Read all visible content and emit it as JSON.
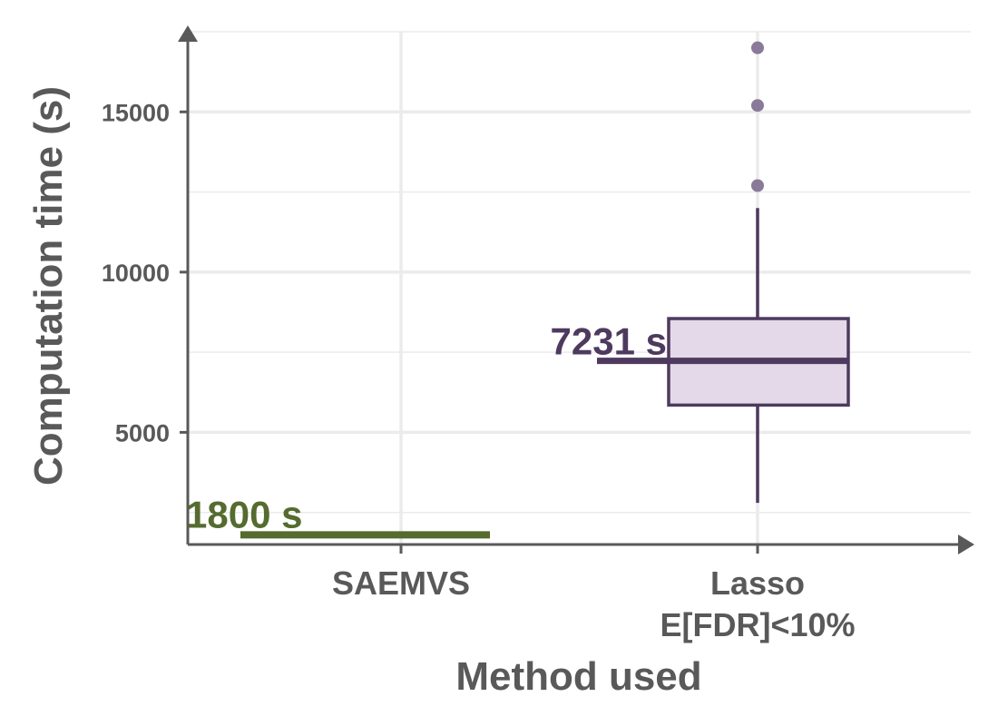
{
  "chart_data": {
    "type": "boxplot",
    "xlabel": "Method used",
    "ylabel": "Computation time (s)",
    "ylim": [
      1500,
      17500
    ],
    "yticks": [
      5000,
      10000,
      15000
    ],
    "grid": true,
    "categories": [
      {
        "lines": [
          "SAEMVS"
        ]
      },
      {
        "lines": [
          "Lasso",
          "E[FDR]<10%"
        ]
      }
    ],
    "series": [
      {
        "kind": "constant",
        "category_index": 0,
        "value": 1800,
        "label": "1800 s",
        "color": "#556b2f"
      },
      {
        "kind": "box",
        "category_index": 1,
        "whisker_low": 2800,
        "q1": 5850,
        "median": 7231,
        "q3": 8550,
        "whisker_high": 12000,
        "outliers": [
          12700,
          15200,
          17000
        ],
        "label": "7231 s",
        "color": "#4e3a5e",
        "fill": "#e3d9e8",
        "outlier_color": "#8a7a99"
      }
    ]
  }
}
